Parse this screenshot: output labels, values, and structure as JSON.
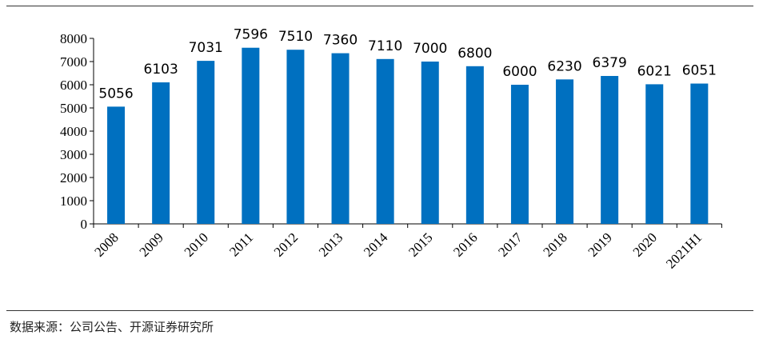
{
  "chart_data": {
    "type": "bar",
    "categories": [
      "2008",
      "2009",
      "2010",
      "2011",
      "2012",
      "2013",
      "2014",
      "2015",
      "2016",
      "2017",
      "2018",
      "2019",
      "2020",
      "2021H1"
    ],
    "values": [
      5056,
      6103,
      7031,
      7596,
      7510,
      7360,
      7110,
      7000,
      6800,
      6000,
      6230,
      6379,
      6021,
      6051
    ],
    "ylim": [
      0,
      8000
    ],
    "yticks": [
      0,
      1000,
      2000,
      3000,
      4000,
      5000,
      6000,
      7000,
      8000
    ],
    "bar_color": "#0070C0",
    "grid": false,
    "data_labels": true
  },
  "source_text": "数据来源：公司公告、开源证券研究所"
}
